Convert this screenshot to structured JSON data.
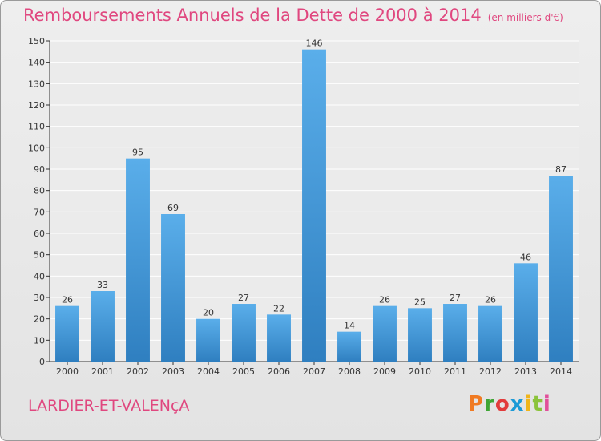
{
  "chart_data": {
    "type": "bar",
    "title": "Remboursements Annuels de la Dette de 2000 à 2014",
    "subtitle": "(en milliers d'€)",
    "categories": [
      "2000",
      "2001",
      "2002",
      "2003",
      "2004",
      "2005",
      "2006",
      "2007",
      "2008",
      "2009",
      "2010",
      "2011",
      "2012",
      "2013",
      "2014"
    ],
    "values": [
      26,
      33,
      95,
      69,
      20,
      27,
      22,
      146,
      14,
      26,
      25,
      27,
      26,
      46,
      87
    ],
    "ylim": [
      0,
      150
    ],
    "yticks": [
      0,
      10,
      20,
      30,
      40,
      50,
      60,
      70,
      80,
      90,
      100,
      110,
      120,
      130,
      140,
      150
    ],
    "xlabel": "",
    "ylabel": "",
    "grid": true,
    "bar_color": "#4a9de0"
  },
  "footer": {
    "town": "LARDIER-ET-VALENçA",
    "logo": "Proxiti",
    "logo_colors": [
      "#f07a22",
      "#3fa535",
      "#e23b3b",
      "#1c9ad6",
      "#f0b51a",
      "#8bc33b",
      "#e2509a"
    ]
  }
}
